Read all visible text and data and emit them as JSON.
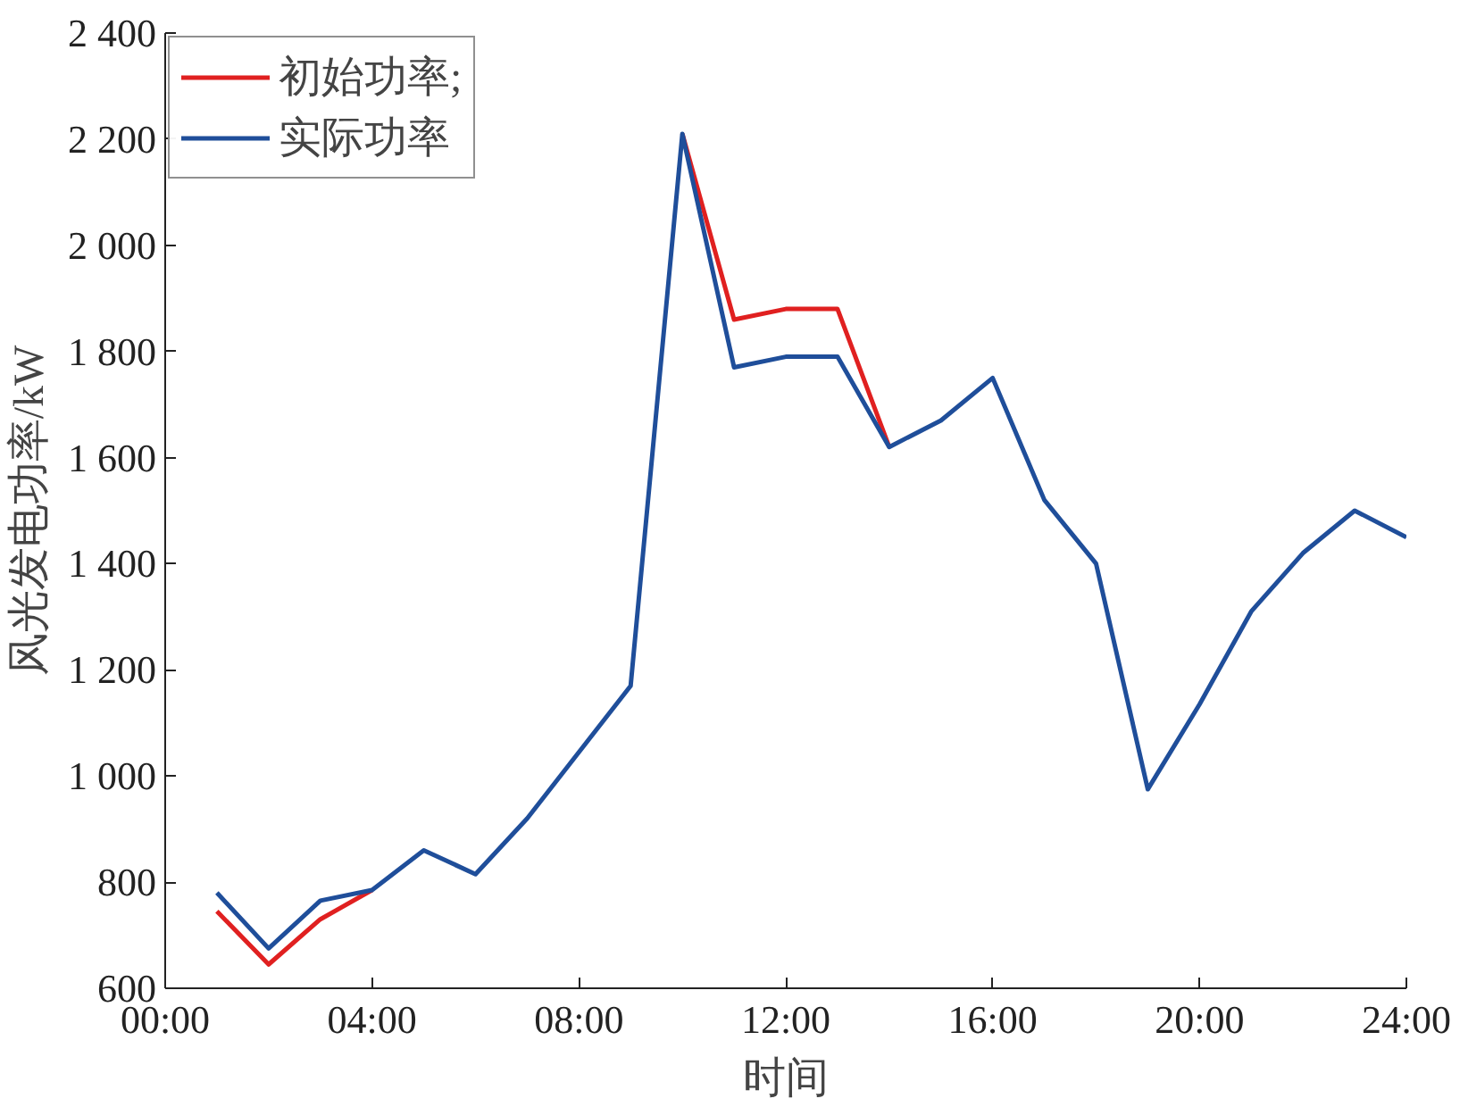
{
  "chart_data": {
    "type": "line",
    "xlabel": "时间",
    "ylabel": "风光发电功率/kW",
    "x": [
      1,
      2,
      3,
      4,
      5,
      6,
      7,
      8,
      9,
      10,
      11,
      12,
      13,
      14,
      15,
      16,
      17,
      18,
      19,
      20,
      21,
      22,
      23,
      24
    ],
    "series": [
      {
        "name": "初始功率;",
        "color": "#e02020",
        "values": [
          745,
          645,
          730,
          785,
          null,
          null,
          null,
          null,
          null,
          2210,
          1860,
          1880,
          1880,
          1620,
          null,
          null,
          null,
          null,
          null,
          null,
          null,
          null,
          null,
          null
        ]
      },
      {
        "name": "实际功率",
        "color": "#1f4e9a",
        "values": [
          780,
          675,
          765,
          785,
          860,
          815,
          920,
          1045,
          1170,
          2210,
          1770,
          1790,
          1790,
          1620,
          1670,
          1750,
          1520,
          1400,
          975,
          1135,
          1310,
          1420,
          1500,
          1450
        ]
      }
    ],
    "xlim": [
      0,
      24
    ],
    "xticks": [
      {
        "value": 0,
        "label": "00:00"
      },
      {
        "value": 4,
        "label": "04:00"
      },
      {
        "value": 8,
        "label": "08:00"
      },
      {
        "value": 12,
        "label": "12:00"
      },
      {
        "value": 16,
        "label": "16:00"
      },
      {
        "value": 20,
        "label": "20:00"
      },
      {
        "value": 24,
        "label": "24:00"
      }
    ],
    "ylim": [
      600,
      2400
    ],
    "yticks": [
      {
        "value": 600,
        "label": "600"
      },
      {
        "value": 800,
        "label": "800"
      },
      {
        "value": 1000,
        "label": "1 000"
      },
      {
        "value": 1200,
        "label": "1 200"
      },
      {
        "value": 1400,
        "label": "1 400"
      },
      {
        "value": 1600,
        "label": "1 600"
      },
      {
        "value": 1800,
        "label": "1 800"
      },
      {
        "value": 2000,
        "label": "2 000"
      },
      {
        "value": 2200,
        "label": "2 200"
      },
      {
        "value": 2400,
        "label": "2 400"
      }
    ],
    "grid": false,
    "legend": "top left",
    "marker": "none",
    "line_style": "solid"
  }
}
